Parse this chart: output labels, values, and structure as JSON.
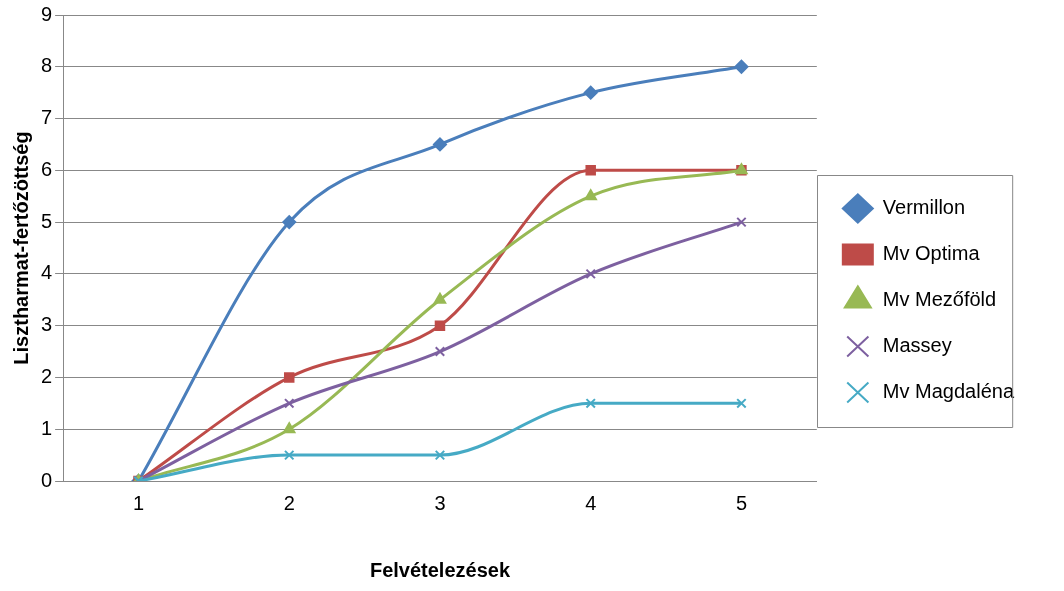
{
  "chart_data": {
    "type": "line",
    "xlabel": "Felvételezések",
    "ylabel": "Lisztharmat-fertőzöttség",
    "categories": [
      "1",
      "2",
      "3",
      "4",
      "5"
    ],
    "series": [
      {
        "name": "Vermillon",
        "color": "#4a7ebb",
        "marker": "diamond",
        "values": [
          0,
          5,
          6.5,
          7.5,
          8
        ]
      },
      {
        "name": "Mv Optima",
        "color": "#be4b48",
        "marker": "square",
        "values": [
          0,
          2,
          3,
          6,
          6
        ]
      },
      {
        "name": "Mv Mezőföld",
        "color": "#98b954",
        "marker": "triangle",
        "values": [
          0,
          1,
          3.5,
          5.5,
          6
        ]
      },
      {
        "name": "Massey",
        "color": "#7d60a0",
        "marker": "cross",
        "values": [
          0,
          1.5,
          2.5,
          4,
          5
        ]
      },
      {
        "name": "Mv Magdaléna",
        "color": "#46aac5",
        "marker": "cross",
        "values": [
          0,
          0.5,
          0.5,
          1.5,
          1.5
        ]
      }
    ],
    "ylim": [
      0,
      9
    ],
    "yticks": [
      0,
      1,
      2,
      3,
      4,
      5,
      6,
      7,
      8,
      9
    ],
    "grid": "y",
    "legend": "right"
  }
}
